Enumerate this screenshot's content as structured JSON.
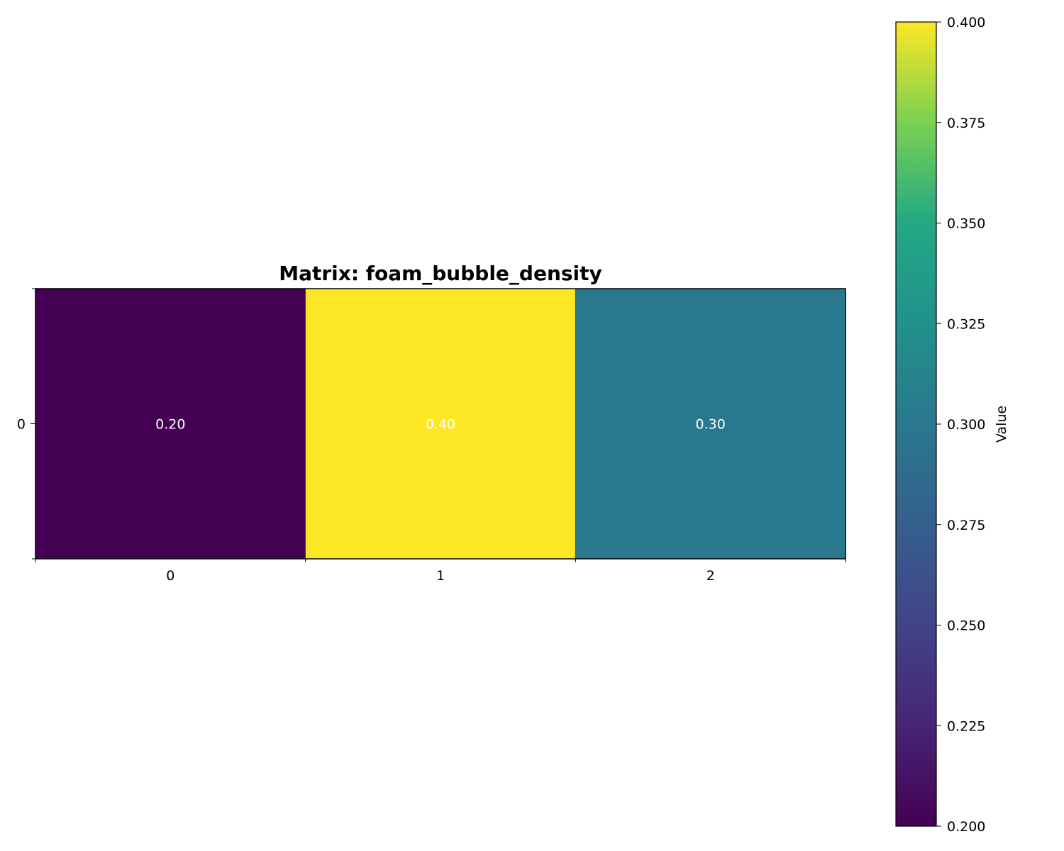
{
  "chart_data": {
    "type": "heatmap",
    "title": "Matrix: foam_bubble_density",
    "x_tick_labels": [
      "0",
      "1",
      "2"
    ],
    "y_tick_labels": [
      "0"
    ],
    "values": [
      [
        0.2,
        0.4,
        0.3
      ]
    ],
    "cell_labels": [
      [
        "0.20",
        "0.40",
        "0.30"
      ]
    ],
    "colormap": "viridis",
    "colorbar": {
      "label": "Value",
      "range": [
        0.2,
        0.4
      ],
      "ticks": [
        0.2,
        0.225,
        0.25,
        0.275,
        0.3,
        0.325,
        0.35,
        0.375,
        0.4
      ],
      "tick_labels": [
        "0.200",
        "0.225",
        "0.250",
        "0.275",
        "0.300",
        "0.325",
        "0.350",
        "0.375",
        "0.400"
      ]
    },
    "colors": {
      "low": "#440154",
      "mid": "#21918c",
      "high": "#fde725"
    }
  }
}
